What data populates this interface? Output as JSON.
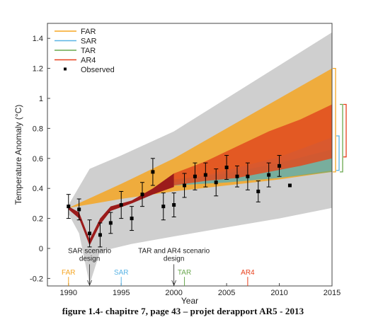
{
  "chart_data": {
    "type": "line",
    "title": "",
    "xlabel": "Year",
    "ylabel": "Temperature Anomaly (°C)",
    "xlim": [
      1988,
      2015
    ],
    "ylim": [
      -0.25,
      1.5
    ],
    "xticks": [
      1990,
      1995,
      2000,
      2005,
      2010,
      2015
    ],
    "yticks": [
      -0.2,
      0,
      0.2,
      0.4,
      0.6,
      0.8,
      1.0,
      1.2,
      1.4
    ],
    "ytick_labels": [
      "-0.2",
      "0",
      "0.2",
      "0.4",
      "0.6",
      "0.8",
      "1",
      "1.2",
      "1.4"
    ],
    "legend": {
      "position": "top-left",
      "entries": [
        {
          "label": "FAR",
          "color": "#f5a623",
          "kind": "line"
        },
        {
          "label": "SAR",
          "color": "#5ab4e5",
          "kind": "line"
        },
        {
          "label": "TAR",
          "color": "#6aa84f",
          "kind": "line"
        },
        {
          "label": "AR4",
          "color": "#e8401c",
          "kind": "line"
        },
        {
          "label": "Observed",
          "color": "#000000",
          "kind": "marker"
        }
      ]
    },
    "envelope": {
      "color": "#cfcfcf",
      "upper": [
        [
          1990,
          0.29
        ],
        [
          1992,
          0.53
        ],
        [
          1995,
          0.62
        ],
        [
          2000,
          0.78
        ],
        [
          2005,
          1.0
        ],
        [
          2010,
          1.22
        ],
        [
          2015,
          1.44
        ]
      ],
      "lower": [
        [
          2015,
          0.27
        ],
        [
          2010,
          0.2
        ],
        [
          2005,
          0.14
        ],
        [
          2000,
          0.08
        ],
        [
          1996,
          0.03
        ],
        [
          1993,
          -0.02
        ],
        [
          1992,
          -0.24
        ],
        [
          1991,
          0.1
        ],
        [
          1990,
          0.23
        ]
      ]
    },
    "bands": [
      {
        "name": "FAR",
        "color": "#f5a623",
        "opacity": 0.85,
        "upper": [
          [
            1990,
            0.27
          ],
          [
            1995,
            0.43
          ],
          [
            2000,
            0.6
          ],
          [
            2005,
            0.8
          ],
          [
            2010,
            1.0
          ],
          [
            2015,
            1.2
          ]
        ],
        "lower": [
          [
            2015,
            0.51
          ],
          [
            2010,
            0.46
          ],
          [
            2005,
            0.42
          ],
          [
            2000,
            0.38
          ],
          [
            1995,
            0.33
          ],
          [
            1990,
            0.27
          ]
        ]
      },
      {
        "name": "TAR",
        "color": "#7fa96a",
        "opacity": 0.85,
        "upper": [
          [
            2000,
            0.46
          ],
          [
            2005,
            0.5
          ],
          [
            2010,
            0.57
          ],
          [
            2015,
            0.66
          ]
        ],
        "lower": [
          [
            2015,
            0.51
          ],
          [
            2010,
            0.47
          ],
          [
            2005,
            0.44
          ],
          [
            2000,
            0.42
          ]
        ]
      },
      {
        "name": "SAR",
        "color": "#5ab4e5",
        "opacity": 0.45,
        "upper": [
          [
            2000,
            0.44
          ],
          [
            2005,
            0.52
          ],
          [
            2010,
            0.61
          ],
          [
            2015,
            0.74
          ]
        ],
        "lower": [
          [
            2015,
            0.52
          ],
          [
            2010,
            0.47
          ],
          [
            2005,
            0.44
          ],
          [
            2000,
            0.42
          ]
        ]
      },
      {
        "name": "AR4",
        "color": "#e04a1e",
        "opacity": 0.85,
        "upper": [
          [
            2000,
            0.5
          ],
          [
            2003,
            0.58
          ],
          [
            2006,
            0.68
          ],
          [
            2009,
            0.78
          ],
          [
            2012,
            0.86
          ],
          [
            2015,
            0.96
          ]
        ],
        "lower": [
          [
            2015,
            0.6
          ],
          [
            2012,
            0.55
          ],
          [
            2009,
            0.51
          ],
          [
            2006,
            0.47
          ],
          [
            2003,
            0.45
          ],
          [
            2000,
            0.42
          ]
        ]
      }
    ],
    "hindcast": {
      "color": "#9b1b1b",
      "upper": [
        [
          1990,
          0.28
        ],
        [
          1991,
          0.24
        ],
        [
          1992,
          0.06
        ],
        [
          1993,
          0.2
        ],
        [
          1994,
          0.28
        ],
        [
          1996,
          0.32
        ],
        [
          1998,
          0.4
        ],
        [
          2000,
          0.5
        ]
      ],
      "lower": [
        [
          2000,
          0.41
        ],
        [
          1998,
          0.36
        ],
        [
          1996,
          0.3
        ],
        [
          1994,
          0.25
        ],
        [
          1993,
          0.16
        ],
        [
          1992,
          0.02
        ],
        [
          1991,
          0.2
        ],
        [
          1990,
          0.26
        ]
      ]
    },
    "observed": {
      "label": "Observed",
      "x": [
        1990,
        1991,
        1992,
        1993,
        1994,
        1995,
        1996,
        1997,
        1998,
        1999,
        2000,
        2001,
        2002,
        2003,
        2004,
        2005,
        2006,
        2007,
        2008,
        2009,
        2010,
        2011
      ],
      "y": [
        0.28,
        0.26,
        0.1,
        0.09,
        0.17,
        0.29,
        0.2,
        0.36,
        0.51,
        0.28,
        0.29,
        0.42,
        0.48,
        0.49,
        0.44,
        0.54,
        0.48,
        0.48,
        0.38,
        0.49,
        0.55,
        0.42
      ],
      "err": [
        0.08,
        0.07,
        0.09,
        0.08,
        0.07,
        0.09,
        0.08,
        0.08,
        0.09,
        0.09,
        0.08,
        0.08,
        0.09,
        0.08,
        0.09,
        0.08,
        0.07,
        0.09,
        0.07,
        0.08,
        0.07,
        0
      ]
    },
    "right_brackets": [
      {
        "name": "FAR",
        "color": "#f5a623",
        "range": [
          0.51,
          1.2
        ]
      },
      {
        "name": "SAR",
        "color": "#5ab4e5",
        "range": [
          0.52,
          0.75
        ]
      },
      {
        "name": "TAR",
        "color": "#6aa84f",
        "range": [
          0.51,
          0.96
        ]
      },
      {
        "name": "AR4",
        "color": "#e8401c",
        "range": [
          0.61,
          0.96
        ]
      }
    ],
    "assessment_markers": [
      {
        "label": "FAR",
        "year": 1990,
        "color": "#f5a623"
      },
      {
        "label": "SAR",
        "year": 1995,
        "color": "#5ab4e5"
      },
      {
        "label": "TAR",
        "year": 2001,
        "color": "#6aa84f"
      },
      {
        "label": "AR4",
        "year": 2007,
        "color": "#e8401c"
      }
    ],
    "annotations": [
      {
        "lines": [
          "SAR scenario",
          "design"
        ],
        "year": 1992
      },
      {
        "lines": [
          "TAR and AR4 scenario",
          "design"
        ],
        "year": 2000
      }
    ]
  },
  "caption": "figure 1.4- chapitre 7, page 43 – projet derapport AR5 - 2013"
}
